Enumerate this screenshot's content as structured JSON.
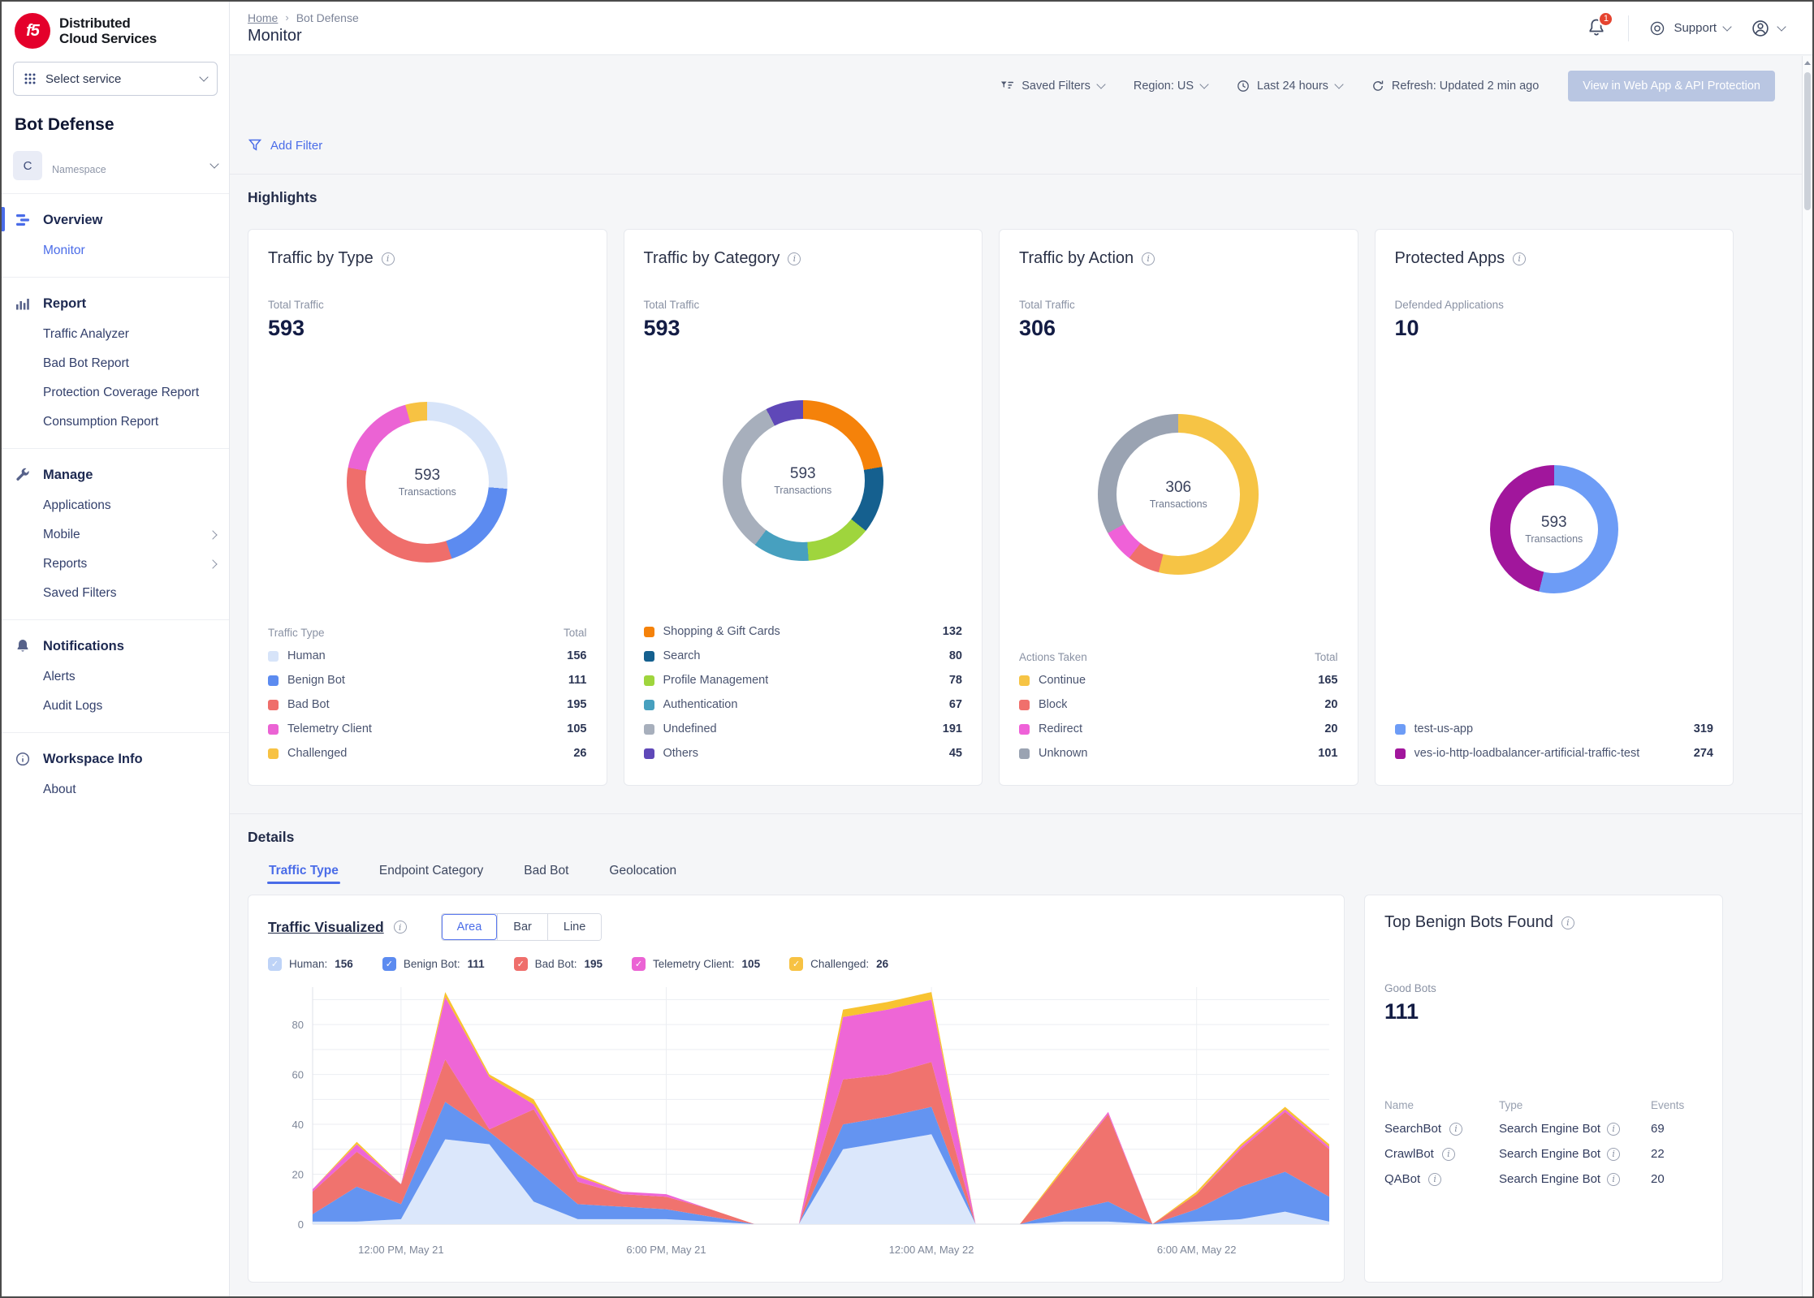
{
  "brand": {
    "logo_text": "f5",
    "name_line1": "Distributed",
    "name_line2": "Cloud Services"
  },
  "sidebar": {
    "service_selector": {
      "label": "Select service",
      "icon": "grid-icon"
    },
    "workspace_title": "Bot Defense",
    "namespace": {
      "initial": "C",
      "label": "Namespace"
    },
    "sections": [
      {
        "icon": "overview-icon",
        "label": "Overview",
        "active": true,
        "items": [
          {
            "label": "Monitor",
            "active": true
          }
        ]
      },
      {
        "icon": "report-icon",
        "label": "Report",
        "items": [
          {
            "label": "Traffic Analyzer"
          },
          {
            "label": "Bad Bot Report"
          },
          {
            "label": "Protection Coverage Report"
          },
          {
            "label": "Consumption Report"
          }
        ]
      },
      {
        "icon": "manage-icon",
        "label": "Manage",
        "items": [
          {
            "label": "Applications"
          },
          {
            "label": "Mobile",
            "chevron": true
          },
          {
            "label": "Reports",
            "chevron": true
          },
          {
            "label": "Saved Filters"
          }
        ]
      },
      {
        "icon": "bell-icon",
        "label": "Notifications",
        "items": [
          {
            "label": "Alerts"
          },
          {
            "label": "Audit Logs"
          }
        ]
      },
      {
        "icon": "info-icon",
        "label": "Workspace Info",
        "items": [
          {
            "label": "About"
          }
        ]
      }
    ]
  },
  "header": {
    "breadcrumb": [
      "Home",
      "Bot Defense"
    ],
    "page_title": "Monitor",
    "notifications_count": "1",
    "support_label": "Support",
    "icons": [
      "bell-icon",
      "support-icon",
      "user-icon"
    ]
  },
  "toolbar": {
    "saved_filters": "Saved Filters",
    "region": "Region: US",
    "time_range": "Last 24 hours",
    "refresh": "Refresh: Updated 2 min ago",
    "cta_button": "View in Web App & API Protection",
    "add_filter": "Add Filter",
    "icons": [
      "filter-lines-icon",
      "clock-icon",
      "refresh-icon",
      "funnel-icon"
    ]
  },
  "highlights": {
    "title": "Highlights",
    "cards": [
      {
        "title": "Traffic by Type",
        "metric_label": "Total Traffic",
        "metric_value": "593",
        "center_value": "593",
        "center_label": "Transactions",
        "legend_header": {
          "label": "Traffic Type",
          "value": "Total"
        },
        "items": [
          {
            "label": "Human",
            "value": "156",
            "color": "#d7e4f9"
          },
          {
            "label": "Benign Bot",
            "value": "111",
            "color": "#5c8bf0"
          },
          {
            "label": "Bad Bot",
            "value": "195",
            "color": "#ef6e6b"
          },
          {
            "label": "Telemetry Client",
            "value": "105",
            "color": "#eb63d4"
          },
          {
            "label": "Challenged",
            "value": "26",
            "color": "#f7c243"
          }
        ]
      },
      {
        "title": "Traffic by Category",
        "metric_label": "Total Traffic",
        "metric_value": "593",
        "center_value": "593",
        "center_label": "Transactions",
        "items": [
          {
            "label": "Shopping & Gift Cards",
            "value": "132",
            "color": "#f5820a"
          },
          {
            "label": "Search",
            "value": "80",
            "color": "#15608f"
          },
          {
            "label": "Profile Management",
            "value": "78",
            "color": "#9fd53d"
          },
          {
            "label": "Authentication",
            "value": "67",
            "color": "#47a0bf"
          },
          {
            "label": "Undefined",
            "value": "191",
            "color": "#a7afbc"
          },
          {
            "label": "Others",
            "value": "45",
            "color": "#5f48b8"
          }
        ]
      },
      {
        "title": "Traffic by Action",
        "metric_label": "Total Traffic",
        "metric_value": "306",
        "center_value": "306",
        "center_label": "Transactions",
        "legend_header": {
          "label": "Actions Taken",
          "value": "Total"
        },
        "items": [
          {
            "label": "Continue",
            "value": "165",
            "color": "#f6c445"
          },
          {
            "label": "Block",
            "value": "20",
            "color": "#f0706c"
          },
          {
            "label": "Redirect",
            "value": "20",
            "color": "#ef61d8"
          },
          {
            "label": "Unknown",
            "value": "101",
            "color": "#9aa3b2"
          }
        ]
      },
      {
        "title": "Protected Apps",
        "metric_label": "Defended Applications",
        "metric_value": "10",
        "center_value": "593",
        "center_label": "Transactions",
        "items": [
          {
            "label": "test-us-app",
            "value": "319",
            "color": "#6d9cf6"
          },
          {
            "label": "ves-io-http-loadbalancer-artificial-traffic-test",
            "value": "274",
            "color": "#a1169c"
          }
        ]
      }
    ]
  },
  "details": {
    "title": "Details",
    "tabs": [
      {
        "label": "Traffic Type",
        "active": true
      },
      {
        "label": "Endpoint Category"
      },
      {
        "label": "Bad Bot"
      },
      {
        "label": "Geolocation"
      }
    ],
    "traffic_visualized": {
      "title": "Traffic Visualized",
      "modes": [
        {
          "label": "Area",
          "active": true
        },
        {
          "label": "Bar"
        },
        {
          "label": "Line"
        }
      ],
      "legend": [
        {
          "label": "Human",
          "value": "156",
          "color": "#bed3f7"
        },
        {
          "label": "Benign Bot",
          "value": "111",
          "color": "#5c8bf0"
        },
        {
          "label": "Bad Bot",
          "value": "195",
          "color": "#ef6e6b"
        },
        {
          "label": "Telemetry Client",
          "value": "105",
          "color": "#eb63d4"
        },
        {
          "label": "Challenged",
          "value": "26",
          "color": "#f7c243"
        }
      ]
    },
    "top_benign_bots": {
      "title": "Top Benign Bots Found",
      "metric_label": "Good Bots",
      "metric_value": "111",
      "columns": [
        "Name",
        "Type",
        "Events"
      ],
      "rows": [
        {
          "name": "SearchBot",
          "type": "Search Engine Bot",
          "events": "69"
        },
        {
          "name": "CrawlBot",
          "type": "Search Engine Bot",
          "events": "22"
        },
        {
          "name": "QABot",
          "type": "Search Engine Bot",
          "events": "20"
        }
      ]
    }
  },
  "chart_data": {
    "type": "area",
    "title": "Traffic Visualized",
    "stacked": true,
    "grid": true,
    "ylim": [
      0,
      95
    ],
    "y_ticks": [
      0,
      20,
      40,
      60,
      80
    ],
    "x_tick_indices": [
      2,
      8,
      14,
      20
    ],
    "x_tick_labels": [
      "12:00 PM, May 21",
      "6:00 PM, May 21",
      "12:00 AM, May 22",
      "6:00 AM, May 22"
    ],
    "series": [
      {
        "name": "Human",
        "color": "#dbe7fb",
        "values": [
          1,
          1,
          2,
          34,
          32,
          9,
          2,
          2,
          2,
          1,
          0,
          0,
          30,
          33,
          36,
          0,
          0,
          1,
          1,
          0,
          1,
          2,
          5,
          1
        ]
      },
      {
        "name": "Benign Bot",
        "color": "#6494f1",
        "values": [
          3,
          14,
          6,
          15,
          5,
          14,
          6,
          5,
          4,
          2,
          0,
          0,
          10,
          10,
          11,
          0,
          0,
          4,
          8,
          0,
          5,
          13,
          16,
          10
        ]
      },
      {
        "name": "Bad Bot",
        "color": "#f0736e",
        "values": [
          9,
          14,
          8,
          17,
          1,
          23,
          9,
          5,
          5,
          3,
          0,
          0,
          18,
          17,
          18,
          0,
          0,
          17,
          35,
          0,
          6,
          15,
          24,
          19
        ]
      },
      {
        "name": "Telemetry Client",
        "color": "#ee66d6",
        "values": [
          1,
          3,
          0,
          25,
          21,
          2,
          2,
          1,
          1,
          0,
          0,
          0,
          25,
          26,
          25,
          0,
          0,
          0,
          1,
          0,
          0,
          1,
          1,
          1
        ]
      },
      {
        "name": "Challenged",
        "color": "#f8c330",
        "values": [
          0,
          1,
          0,
          2,
          1,
          2,
          1,
          0,
          0,
          0,
          0,
          0,
          3,
          3,
          3,
          0,
          0,
          1,
          0,
          0,
          1,
          1,
          1,
          1
        ]
      }
    ]
  }
}
